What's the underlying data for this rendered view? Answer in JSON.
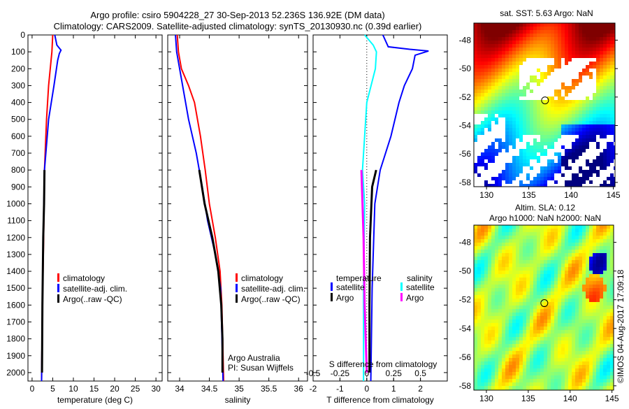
{
  "title_line1": "Argo profile: csiro 5904228_27 30-Sep-2013 52.236S 136.92E (DM data)",
  "title_line2": "Climatology: CARS2009. Satellite-adjusted climatology: synTS_20130930.nc (0.39d earlier)",
  "colors": {
    "climatology": "#ff0000",
    "satellite": "#0000ff",
    "argo": "#000000",
    "sal_satellite": "#00ffff",
    "sal_argo": "#ff00ff"
  },
  "chart_data": [
    {
      "type": "line",
      "name": "temperature",
      "xlabel": "temperature (deg C)",
      "xlim": [
        -1,
        31.5
      ],
      "ylim": [
        0,
        2050
      ],
      "xticks": [
        0,
        5,
        10,
        15,
        20,
        25,
        30
      ],
      "yticks": [
        0,
        100,
        200,
        300,
        400,
        500,
        600,
        700,
        800,
        900,
        1000,
        1100,
        1200,
        1300,
        1400,
        1500,
        1600,
        1700,
        1800,
        1900,
        2000
      ],
      "legend": [
        "climatology",
        "satellite-adj. clim.",
        "Argo(..raw -QC)"
      ],
      "series": [
        {
          "name": "climatology",
          "depth": [
            0,
            100,
            300,
            500,
            800,
            1200,
            1600,
            2050
          ],
          "values": [
            5.0,
            4.8,
            4.0,
            3.5,
            3.0,
            2.8,
            2.5,
            2.3
          ]
        },
        {
          "name": "satellite-adj. clim.",
          "depth": [
            0,
            60,
            90,
            110,
            150,
            300,
            500,
            800,
            1200,
            1600,
            2050
          ],
          "values": [
            5.5,
            6.0,
            7.0,
            6.6,
            6.2,
            5.3,
            4.0,
            3.0,
            2.7,
            2.5,
            2.3
          ]
        },
        {
          "name": "Argo(..raw -QC)",
          "depth": [
            800,
            1000,
            1200,
            1600,
            2000
          ],
          "values": [
            3.0,
            2.9,
            2.7,
            2.5,
            2.4
          ]
        }
      ]
    },
    {
      "type": "line",
      "name": "salinity",
      "xlabel": "salinity",
      "xlim": [
        33.8,
        36.15
      ],
      "ylim": [
        0,
        2050
      ],
      "xticks": [
        34,
        34.5,
        35,
        35.5,
        36
      ],
      "legend": [
        "climatology",
        "satellite-adj. clim.",
        "Argo(..raw -QC)"
      ],
      "annotation": [
        "Argo Australia",
        "PI: Susan Wijffels"
      ],
      "series": [
        {
          "name": "climatology",
          "depth": [
            0,
            100,
            200,
            300,
            400,
            600,
            800,
            1000,
            1200,
            1400,
            1600,
            2050
          ],
          "values": [
            33.96,
            33.98,
            34.03,
            34.15,
            34.25,
            34.35,
            34.43,
            34.5,
            34.6,
            34.68,
            34.71,
            34.74
          ]
        },
        {
          "name": "satellite-adj. clim.",
          "depth": [
            0,
            100,
            200,
            300,
            500,
            700,
            900,
            1100,
            1300,
            1500,
            2050
          ],
          "values": [
            33.93,
            33.95,
            34.0,
            34.05,
            34.15,
            34.28,
            34.38,
            34.47,
            34.6,
            34.69,
            34.73
          ]
        },
        {
          "name": "Argo(..raw -QC)",
          "depth": [
            800,
            1000,
            1200,
            1400,
            1600,
            1800,
            2000
          ],
          "values": [
            34.33,
            34.42,
            34.55,
            34.65,
            34.7,
            34.72,
            34.72
          ]
        }
      ]
    },
    {
      "type": "line",
      "name": "difference",
      "xlabel": "T difference from climatology",
      "x2label": "S difference from climatology",
      "xlim": [
        -2.0,
        3.0
      ],
      "x2lim": [
        -0.5,
        0.75
      ],
      "ylim": [
        0,
        2050
      ],
      "xticks": [
        -2,
        -1,
        0,
        1,
        2
      ],
      "x2ticks": [
        "-0.5",
        "-0.25",
        "0",
        "0.25",
        "0.5"
      ],
      "legend": {
        "temperature_title": "temperature",
        "salinity_title": "salinity",
        "satellite": "satellite",
        "argo": "Argo"
      },
      "series": [
        {
          "name": "T satellite",
          "axis": "T",
          "depth": [
            0,
            70,
            85,
            95,
            120,
            200,
            300,
            400,
            600,
            800,
            1000,
            1500,
            2050
          ],
          "values": [
            0.6,
            0.8,
            1.6,
            2.3,
            1.8,
            1.7,
            1.4,
            1.2,
            0.9,
            0.5,
            0.3,
            0.2,
            0.15
          ]
        },
        {
          "name": "T Argo",
          "axis": "T",
          "depth": [
            800,
            900,
            1200,
            1600,
            2000
          ],
          "values": [
            0.35,
            0.2,
            0.12,
            0.1,
            0.1
          ]
        },
        {
          "name": "S satellite",
          "axis": "S",
          "depth": [
            0,
            60,
            100,
            200,
            400,
            600,
            800,
            1000,
            1500,
            2050
          ],
          "values": [
            -0.02,
            0.06,
            0.09,
            0.08,
            0.0,
            -0.02,
            -0.04,
            -0.02,
            -0.03,
            -0.03
          ]
        },
        {
          "name": "S Argo",
          "axis": "S",
          "depth": [
            800,
            1200,
            1600,
            2000
          ],
          "values": [
            -0.05,
            -0.03,
            -0.02,
            0.0
          ]
        }
      ]
    },
    {
      "type": "heatmap",
      "name": "sst-map",
      "title": "sat. SST: 5.63 Argo: NaN",
      "xlim": [
        128.5,
        145.2
      ],
      "ylim": [
        -58.3,
        -46.8
      ],
      "xticks": [
        130,
        135,
        140,
        145
      ],
      "yticks": [
        -48,
        -50,
        -52,
        -54,
        -56,
        -58
      ],
      "marker": {
        "lon": 136.92,
        "lat": -52.236
      }
    },
    {
      "type": "heatmap",
      "name": "sla-map",
      "title": "Altim. SLA: 0.12",
      "subtitle": "Argo h1000: NaN h2000: NaN",
      "xlim": [
        128.5,
        145.2
      ],
      "ylim": [
        -58.3,
        -46.8
      ],
      "xticks": [
        130,
        135,
        140,
        145
      ],
      "yticks": [
        -48,
        -50,
        -52,
        -54,
        -56,
        -58
      ],
      "marker": {
        "lon": 136.92,
        "lat": -52.236
      }
    }
  ],
  "credit": "©IMOS 04-Aug-2017 17:09:18"
}
